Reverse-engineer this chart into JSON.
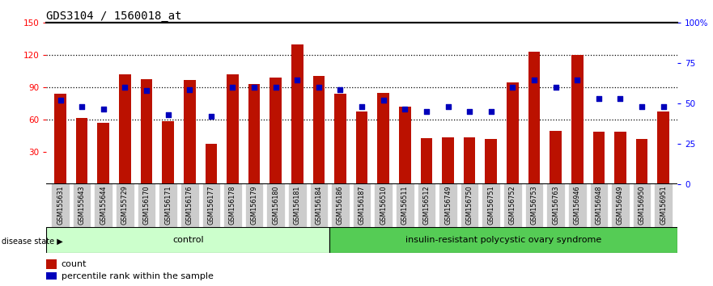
{
  "title": "GDS3104 / 1560018_at",
  "categories": [
    "GSM155631",
    "GSM155643",
    "GSM155644",
    "GSM155729",
    "GSM156170",
    "GSM156171",
    "GSM156176",
    "GSM156177",
    "GSM156178",
    "GSM156179",
    "GSM156180",
    "GSM156181",
    "GSM156184",
    "GSM156186",
    "GSM156187",
    "GSM156510",
    "GSM156511",
    "GSM156512",
    "GSM156749",
    "GSM156750",
    "GSM156751",
    "GSM156752",
    "GSM156753",
    "GSM156763",
    "GSM156946",
    "GSM156948",
    "GSM156949",
    "GSM156950",
    "GSM156951"
  ],
  "bar_values": [
    84,
    62,
    57,
    102,
    98,
    59,
    97,
    38,
    102,
    93,
    99,
    130,
    101,
    84,
    68,
    85,
    72,
    43,
    44,
    44,
    42,
    95,
    123,
    50,
    120,
    49,
    49,
    42,
    68
  ],
  "dot_values": [
    78,
    72,
    70,
    90,
    87,
    65,
    88,
    63,
    90,
    90,
    90,
    97,
    90,
    88,
    72,
    78,
    70,
    68,
    72,
    68,
    68,
    90,
    97,
    90,
    97,
    80,
    80,
    72,
    72
  ],
  "control_count": 13,
  "disease_count": 16,
  "control_label": "control",
  "disease_label": "insulin-resistant polycystic ovary syndrome",
  "disease_state_label": "disease state",
  "legend_count": "count",
  "legend_pct": "percentile rank within the sample",
  "ylim_left": [
    0,
    150
  ],
  "yticks_left": [
    30,
    60,
    90,
    120,
    150
  ],
  "yticks_right_vals": [
    0,
    25,
    50,
    75,
    100
  ],
  "yticks_right_labels": [
    "0",
    "25",
    "50",
    "75",
    "100%"
  ],
  "grid_lines": [
    60,
    90,
    120
  ],
  "bar_color": "#BB1100",
  "dot_color": "#0000BB",
  "control_bg": "#CCFFCC",
  "disease_bg": "#55CC55",
  "tick_label_bg": "#CCCCCC",
  "title_fontsize": 10,
  "tick_fontsize": 7.5,
  "group_fontsize": 8
}
